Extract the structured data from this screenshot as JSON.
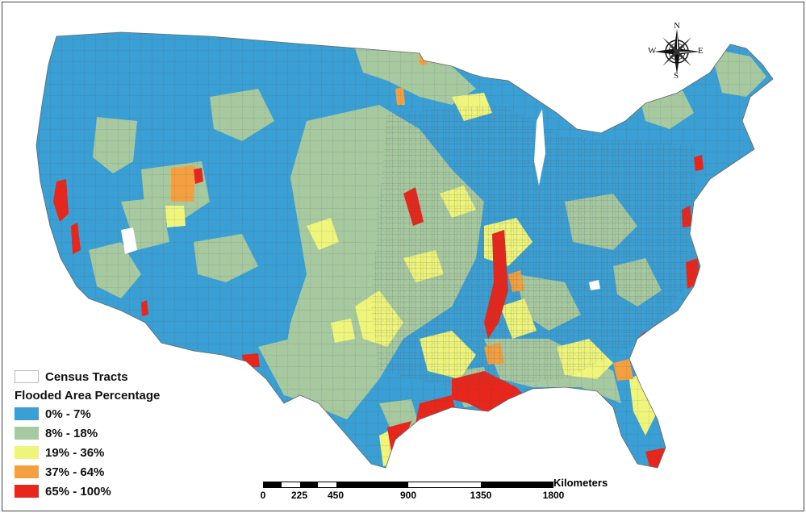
{
  "legend": {
    "census_label": "Census Tracts",
    "title": "Flooded Area Percentage",
    "classes": [
      {
        "label": "0% - 7%",
        "color": "#3a9fd4"
      },
      {
        "label": "8% - 18%",
        "color": "#a6c9a0"
      },
      {
        "label": "19% - 36%",
        "color": "#eef57a"
      },
      {
        "label": "37% - 64%",
        "color": "#f4a040"
      },
      {
        "label": "65% - 100%",
        "color": "#e8261c"
      }
    ]
  },
  "scale": {
    "unit": "Kilometers",
    "ticks": [
      "0",
      "225",
      "450",
      "900",
      "1350",
      "1800"
    ]
  },
  "compass": {
    "n": "N",
    "s": "S",
    "e": "E",
    "w": "W"
  }
}
